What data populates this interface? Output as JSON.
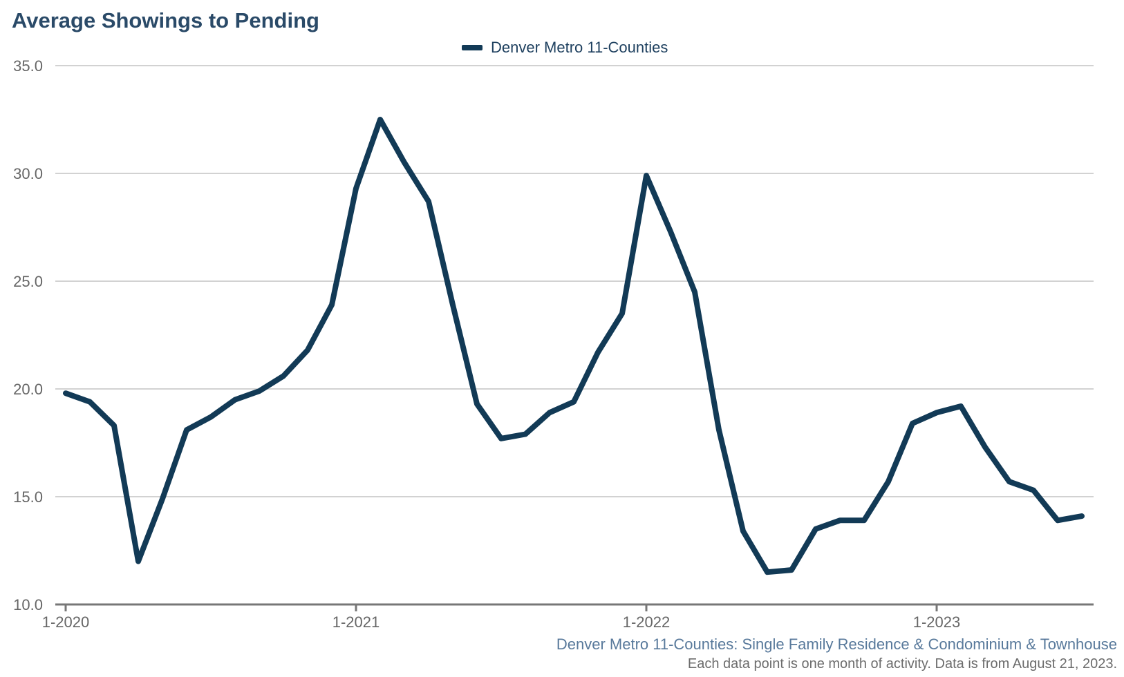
{
  "chart_data": {
    "type": "line",
    "title": "Average Showings to Pending",
    "series": [
      {
        "name": "Denver Metro 11-Counties",
        "color": "#123a56",
        "x": [
          "2020-01",
          "2020-02",
          "2020-03",
          "2020-04",
          "2020-05",
          "2020-06",
          "2020-07",
          "2020-08",
          "2020-09",
          "2020-10",
          "2020-11",
          "2020-12",
          "2021-01",
          "2021-02",
          "2021-03",
          "2021-04",
          "2021-05",
          "2021-06",
          "2021-07",
          "2021-08",
          "2021-09",
          "2021-10",
          "2021-11",
          "2021-12",
          "2022-01",
          "2022-02",
          "2022-03",
          "2022-04",
          "2022-05",
          "2022-06",
          "2022-07",
          "2022-08",
          "2022-09",
          "2022-10",
          "2022-11",
          "2022-12",
          "2023-01",
          "2023-02",
          "2023-03",
          "2023-04",
          "2023-05",
          "2023-06",
          "2023-07"
        ],
        "values": [
          19.8,
          19.4,
          18.3,
          12.0,
          14.9,
          18.1,
          18.7,
          19.5,
          19.9,
          20.6,
          21.8,
          23.9,
          29.3,
          32.5,
          30.5,
          28.7,
          23.9,
          19.3,
          17.7,
          17.9,
          18.9,
          19.4,
          21.7,
          23.5,
          29.9,
          27.3,
          24.5,
          18.1,
          13.4,
          11.5,
          11.6,
          13.5,
          13.9,
          13.9,
          15.7,
          18.4,
          18.9,
          19.2,
          17.3,
          15.7,
          15.3,
          13.9,
          14.1
        ]
      }
    ],
    "x_tick_labels": [
      "1-2020",
      "1-2021",
      "1-2022",
      "1-2023"
    ],
    "y_tick_labels": [
      "10.0",
      "15.0",
      "20.0",
      "25.0",
      "30.0",
      "35.0"
    ],
    "ylim": [
      10,
      35
    ],
    "xlabel": "",
    "ylabel": "",
    "grid": "horizontal",
    "legend_position": "top-center",
    "axis_color": "#777777",
    "grid_color": "#c4c4c4",
    "tick_label_color": "#666666"
  },
  "footer": {
    "subtitle": "Denver Metro 11-Counties: Single Family Residence & Condominium & Townhouse",
    "note": "Each data point is one month of activity. Data is from August 21, 2023."
  }
}
